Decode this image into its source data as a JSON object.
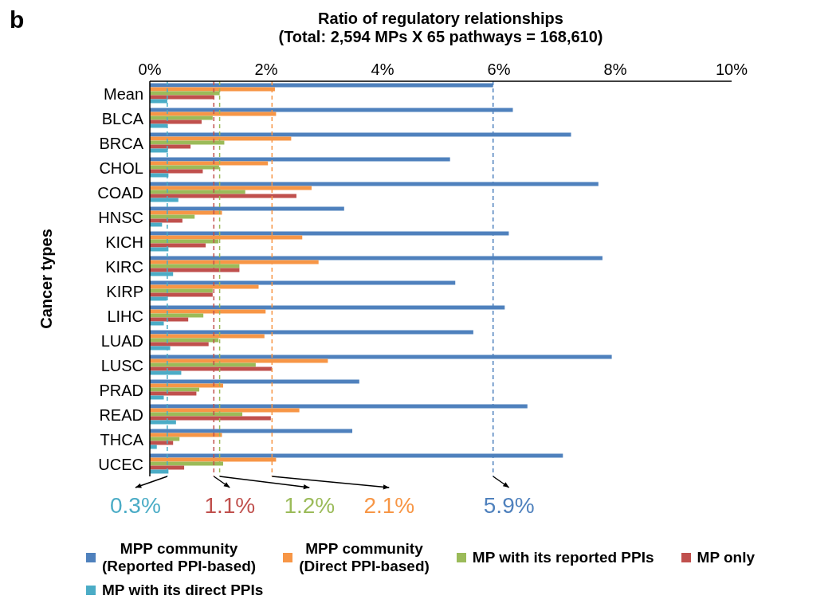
{
  "chart_data": {
    "type": "bar",
    "orientation": "horizontal",
    "xlabel": "Ratio of regulatory relationships\n(Total: 2,594 MPs X 65 pathways = 168,610)",
    "ylabel": "Cancer types",
    "annotations": [
      "b"
    ],
    "categories": [
      "Mean",
      "BLCA",
      "BRCA",
      "CHOL",
      "COAD",
      "HNSC",
      "KICH",
      "KIRC",
      "KIRP",
      "LIHC",
      "LUAD",
      "LUSC",
      "PRAD",
      "READ",
      "THCA",
      "UCEC"
    ],
    "series": [
      {
        "name": "MPP community\n(Reported PPI-based)",
        "color": "#4f81bd",
        "values": [
          5.9,
          6.24,
          7.24,
          5.16,
          7.71,
          3.34,
          6.17,
          7.78,
          5.25,
          6.1,
          5.56,
          7.94,
          3.6,
          6.49,
          3.48,
          7.1
        ]
      },
      {
        "name": "MPP community\n(Direct PPI-based)",
        "color": "#f79646",
        "values": [
          2.15,
          2.17,
          2.43,
          2.03,
          2.78,
          1.24,
          2.62,
          2.9,
          1.87,
          1.99,
          1.97,
          3.06,
          1.26,
          2.57,
          1.24,
          2.17
        ]
      },
      {
        "name": "MP with its reported PPIs",
        "color": "#9bbb59",
        "values": [
          1.2,
          1.08,
          1.28,
          1.19,
          1.64,
          0.77,
          1.18,
          1.54,
          1.08,
          0.92,
          1.18,
          1.82,
          0.85,
          1.59,
          0.51,
          1.26
        ]
      },
      {
        "name": "MP only",
        "color": "#c0504d",
        "values": [
          1.1,
          0.89,
          0.7,
          0.91,
          2.52,
          0.56,
          0.96,
          1.54,
          1.08,
          0.66,
          1.01,
          2.1,
          0.8,
          2.08,
          0.4,
          0.59
        ]
      },
      {
        "name": "MP with its direct PPIs",
        "color": "#4bacc6",
        "values": [
          0.3,
          0.3,
          0.31,
          0.32,
          0.49,
          0.21,
          0.32,
          0.4,
          0.29,
          0.24,
          0.35,
          0.54,
          0.24,
          0.45,
          0.12,
          0.32
        ]
      }
    ],
    "xlim": [
      0,
      10
    ],
    "xticks": [
      {
        "value": 0,
        "label": "0%"
      },
      {
        "value": 2,
        "label": "2%"
      },
      {
        "value": 4,
        "label": "4%"
      },
      {
        "value": 6,
        "label": "6%"
      },
      {
        "value": 8,
        "label": "8%"
      },
      {
        "value": 10,
        "label": "10%"
      }
    ],
    "ref_lines": [
      {
        "axis": "x",
        "value": 0.3,
        "label": "0.3%",
        "color": "#4bacc6",
        "line_style": "dashed"
      },
      {
        "axis": "x",
        "value": 1.1,
        "label": "1.1%",
        "color": "#c0504d",
        "line_style": "dashed"
      },
      {
        "axis": "x",
        "value": 1.2,
        "label": "1.2%",
        "color": "#9bbb59",
        "line_style": "dashed"
      },
      {
        "axis": "x",
        "value": 2.1,
        "label": "2.1%",
        "color": "#f79646",
        "line_style": "dashed"
      },
      {
        "axis": "x",
        "value": 5.9,
        "label": "5.9%",
        "color": "#4f81bd",
        "line_style": "dashed"
      }
    ],
    "grid": false,
    "legend": "bottom"
  }
}
